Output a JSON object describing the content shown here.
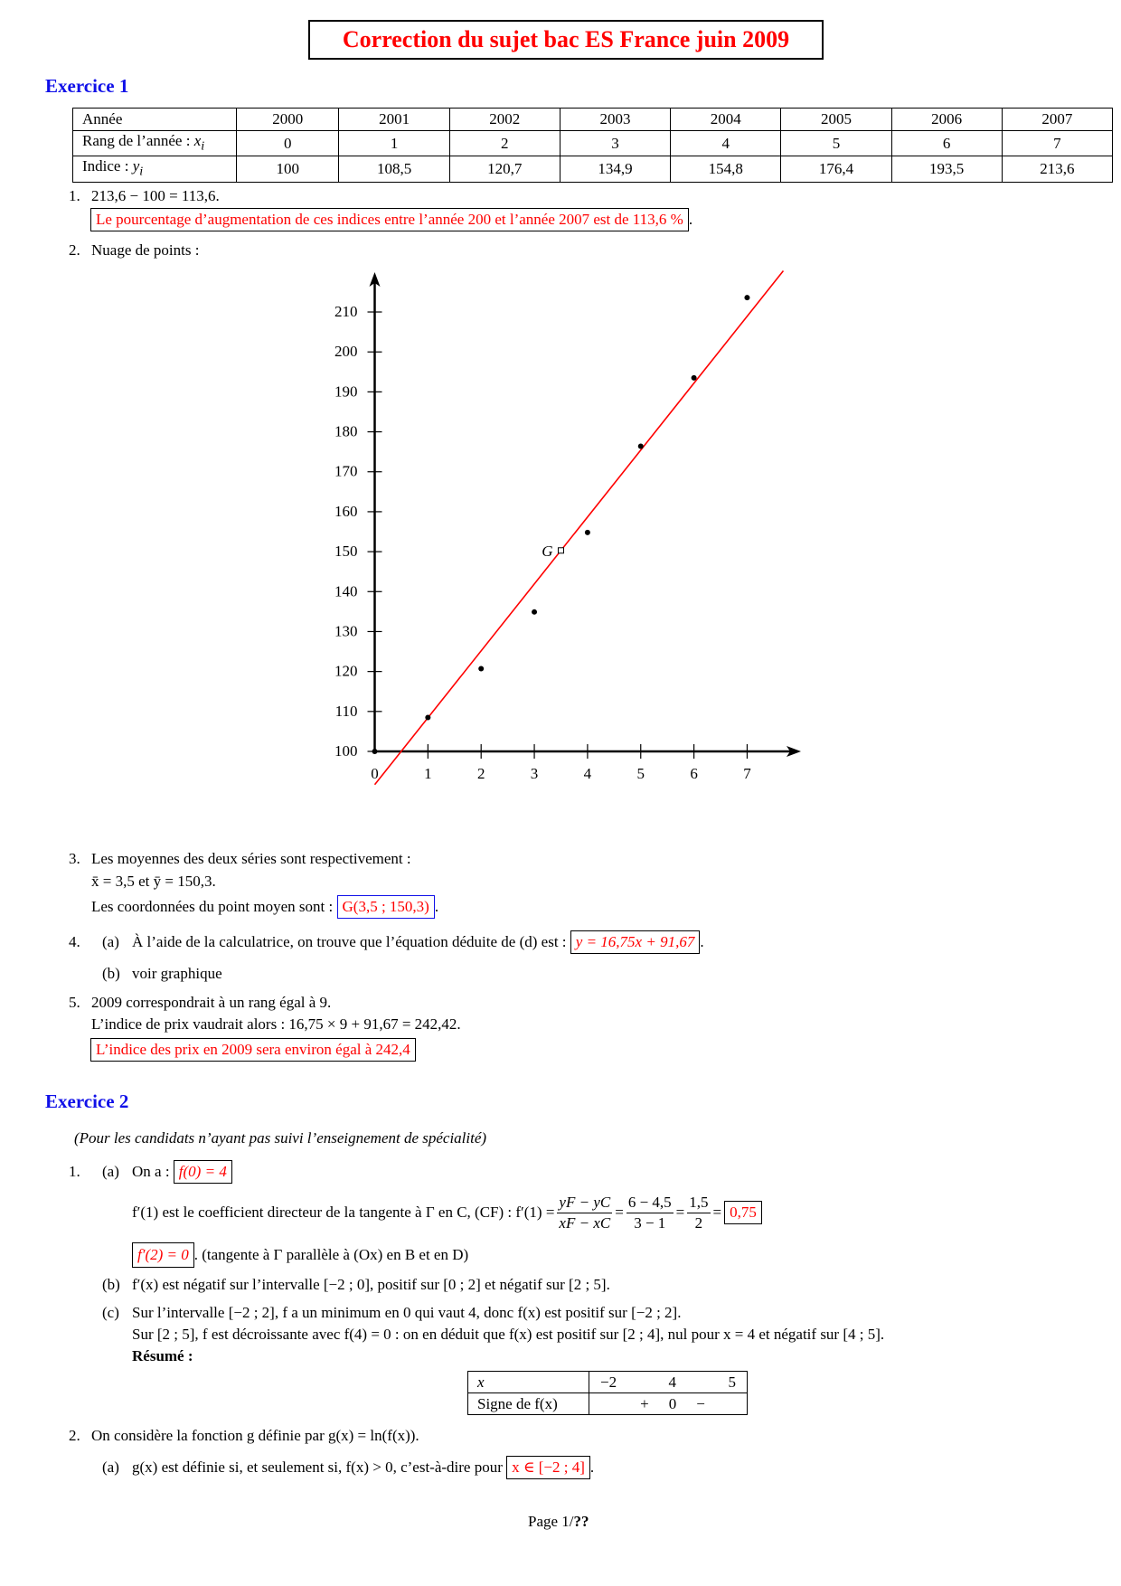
{
  "title": "Correction du sujet bac ES France juin 2009",
  "ex1": {
    "heading": "Exercice 1",
    "table": {
      "rows": [
        {
          "label": "Année",
          "values": [
            "2000",
            "2001",
            "2002",
            "2003",
            "2004",
            "2005",
            "2006",
            "2007"
          ]
        },
        {
          "label": "Rang de l’année : ",
          "var": "x",
          "sub": "i",
          "values": [
            "0",
            "1",
            "2",
            "3",
            "4",
            "5",
            "6",
            "7"
          ]
        },
        {
          "label": "Indice : ",
          "var": "y",
          "sub": "i",
          "values": [
            "100",
            "108,5",
            "120,7",
            "134,9",
            "154,8",
            "176,4",
            "193,5",
            "213,6"
          ]
        }
      ]
    },
    "q1": {
      "num": "1.",
      "calc": "213,6 − 100 = 113,6.",
      "answer": "Le pourcentage d’augmentation de ces indices entre l’année 200 et l’année 2007 est de 113,6 %"
    },
    "q2": {
      "num": "2.",
      "text": "Nuage de points :"
    },
    "q3": {
      "num": "3.",
      "line1": "Les moyennes des deux séries sont respectivement :",
      "line2": "x̄ = 3,5 et ȳ = 150,3.",
      "line3": "Les coordonnées du point moyen sont :",
      "answer": "G(3,5 ; 150,3)"
    },
    "q4": {
      "num": "4.",
      "a_label": "(a)",
      "a_text": "À l’aide de la calculatrice, on trouve que l’équation déduite de (d) est :",
      "a_answer": "y = 16,75x + 91,67",
      "b_label": "(b)",
      "b_text": "voir graphique"
    },
    "q5": {
      "num": "5.",
      "line1": "2009 correspondrait à un rang égal à 9.",
      "line2": "L’indice de prix vaudrait alors : 16,75 × 9 + 91,67 = 242,42.",
      "answer": "L’indice des prix en 2009 sera environ égal à 242,4"
    }
  },
  "chart_data": {
    "type": "scatter",
    "x_ticks": [
      "0",
      "1",
      "2",
      "3",
      "4",
      "5",
      "6",
      "7"
    ],
    "y_ticks": [
      "100",
      "110",
      "120",
      "130",
      "140",
      "150",
      "160",
      "170",
      "180",
      "190",
      "200",
      "210"
    ],
    "xlim": [
      0,
      7.7
    ],
    "ylim": [
      100,
      220
    ],
    "points": [
      {
        "x": 0,
        "y": 100
      },
      {
        "x": 1,
        "y": 108.5
      },
      {
        "x": 2,
        "y": 120.7
      },
      {
        "x": 3,
        "y": 134.9
      },
      {
        "x": 4,
        "y": 154.8
      },
      {
        "x": 5,
        "y": 176.4
      },
      {
        "x": 6,
        "y": 193.5
      },
      {
        "x": 7,
        "y": 213.6
      }
    ],
    "mean_point": {
      "label": "G",
      "x": 3.5,
      "y": 150.3
    },
    "regression_line": {
      "slope": 16.75,
      "intercept": 91.67,
      "color": "#ff0000"
    },
    "grid": false
  },
  "ex2": {
    "heading": "Exercice 2",
    "note": "(Pour les candidats n’ayant pas suivi l’enseignement de spécialité)",
    "q1": {
      "num": "1.",
      "a_label": "(a)",
      "a_text": "On a :",
      "a_answer": "f(0) = 4",
      "a_line2": "f′(1) est le coefficient directeur de la tangente à Γ en C, (CF) : f′(1) =",
      "frac1_num": "yF − yC",
      "frac1_den": "xF − xC",
      "frac2_num": "6 − 4,5",
      "frac2_den": "3 − 1",
      "frac3_num": "1,5",
      "frac3_den": "2",
      "eq": "=",
      "a_answer2": "0,75",
      "a_answer3": "f′(2) = 0",
      "a_line3": ". (tangente à Γ parallèle à (Ox) en B et en D)",
      "b_label": "(b)",
      "b_text": "f′(x) est négatif sur l’intervalle [−2 ; 0], positif sur [0 ; 2] et négatif sur [2 ; 5].",
      "c_label": "(c)",
      "c_line1": "Sur l’intervalle [−2 ; 2], f a un minimum en 0 qui vaut 4, donc f(x) est positif sur [−2 ; 2].",
      "c_line2": "Sur [2 ; 5], f est décroissante avec f(4) = 0 : on en déduit que f(x) est positif sur [2 ; 4], nul pour x = 4 et négatif sur [4 ; 5].",
      "summary": "Résumé :",
      "sign_table": {
        "row1_label": "x",
        "row1_values": [
          "−2",
          "4",
          "5"
        ],
        "row2_label": "Signe de f(x)",
        "row2_values": [
          "+",
          "0",
          "−"
        ]
      }
    },
    "q2": {
      "num": "2.",
      "text": "On considère la fonction g définie par g(x) = ln(f(x)).",
      "a_label": "(a)",
      "a_text": "g(x) est définie si, et seulement si, f(x) > 0, c’est-à-dire pour",
      "a_answer": "x ∈ [−2 ; 4]"
    }
  },
  "footer": {
    "page": "Page 1/",
    "total": "??"
  }
}
